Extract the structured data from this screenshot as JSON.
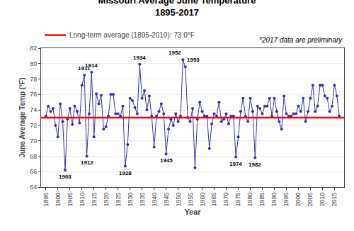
{
  "chart_data": {
    "type": "line",
    "title": "Missouri Average June Temperature",
    "subtitle": "1895-2017",
    "xlabel": "Year",
    "ylabel": "June Average Temp (°F)",
    "note": "*2017 data are preliminary",
    "x": [
      1895,
      1896,
      1897,
      1898,
      1899,
      1900,
      1901,
      1902,
      1903,
      1904,
      1905,
      1906,
      1907,
      1908,
      1909,
      1910,
      1911,
      1912,
      1913,
      1914,
      1915,
      1916,
      1917,
      1918,
      1919,
      1920,
      1921,
      1922,
      1923,
      1924,
      1925,
      1926,
      1927,
      1928,
      1929,
      1930,
      1931,
      1932,
      1933,
      1934,
      1935,
      1936,
      1937,
      1938,
      1939,
      1940,
      1941,
      1942,
      1943,
      1944,
      1945,
      1946,
      1947,
      1948,
      1949,
      1950,
      1951,
      1952,
      1953,
      1954,
      1955,
      1956,
      1957,
      1958,
      1959,
      1960,
      1961,
      1962,
      1963,
      1964,
      1965,
      1966,
      1967,
      1968,
      1969,
      1970,
      1971,
      1972,
      1973,
      1974,
      1975,
      1976,
      1977,
      1978,
      1979,
      1980,
      1981,
      1982,
      1983,
      1984,
      1985,
      1986,
      1987,
      1988,
      1989,
      1990,
      1991,
      1992,
      1993,
      1994,
      1995,
      1996,
      1997,
      1998,
      1999,
      2000,
      2001,
      2002,
      2003,
      2004,
      2005,
      2006,
      2007,
      2008,
      2009,
      2010,
      2011,
      2012,
      2013,
      2014,
      2015,
      2016,
      2017
    ],
    "series": [
      {
        "color": "#3333AA",
        "marker": "circle",
        "values": [
          73.2,
          74.5,
          73.8,
          74.2,
          72.0,
          70.5,
          74.8,
          72.5,
          66.2,
          72.8,
          74.2,
          72.1,
          74.5,
          73.8,
          72.3,
          77.2,
          78.5,
          68.0,
          73.5,
          78.9,
          70.5,
          76.1,
          74.8,
          75.9,
          71.5,
          71.8,
          73.2,
          76.0,
          76.0,
          73.5,
          73.5,
          73.2,
          74.5,
          66.7,
          69.5,
          75.5,
          75.2,
          74.3,
          73.5,
          79.9,
          75.5,
          76.5,
          74.0,
          75.8,
          73.2,
          69.2,
          73.2,
          73.8,
          74.8,
          73.5,
          68.3,
          71.5,
          72.8,
          72.0,
          73.5,
          72.5,
          73.2,
          80.5,
          79.6,
          73.0,
          72.5,
          74.2,
          66.5,
          72.8,
          75.0,
          73.8,
          73.2,
          73.2,
          69.0,
          72.2,
          73.5,
          73.2,
          75.0,
          72.5,
          72.8,
          73.5,
          72.2,
          73.2,
          73.2,
          67.9,
          70.5,
          73.8,
          75.5,
          73.2,
          72.5,
          75.5,
          73.8,
          67.8,
          74.5,
          74.2,
          73.5,
          74.5,
          74.5,
          75.5,
          73.2,
          75.5,
          73.8,
          72.5,
          71.5,
          75.8,
          73.5,
          73.2,
          73.2,
          73.5,
          73.5,
          74.5,
          73.8,
          75.5,
          72.5,
          73.8,
          75.5,
          77.2,
          73.8,
          74.5,
          77.2,
          77.2,
          75.8,
          75.5,
          73.8,
          74.5,
          77.2,
          75.8,
          73.2
        ]
      }
    ],
    "hlines": [
      {
        "name": "Long-term average (1895-2010): 73.0°F",
        "value": 73.0,
        "color": "#FF0000"
      }
    ],
    "annotations": [
      {
        "text": "1903",
        "x": 1903,
        "y": 66.2
      },
      {
        "text": "1911",
        "x": 1911,
        "y": 78.5
      },
      {
        "text": "1914",
        "x": 1914,
        "y": 78.9
      },
      {
        "text": "1912",
        "x": 1912,
        "y": 68.0
      },
      {
        "text": "1928",
        "x": 1928,
        "y": 66.7
      },
      {
        "text": "1934",
        "x": 1934,
        "y": 79.9
      },
      {
        "text": "1945",
        "x": 1945,
        "y": 68.3
      },
      {
        "text": "1952",
        "x": 1952,
        "y": 80.5
      },
      {
        "text": "1953",
        "x": 1953,
        "y": 79.6
      },
      {
        "text": "1974",
        "x": 1974,
        "y": 67.9
      },
      {
        "text": "1982",
        "x": 1982,
        "y": 67.8
      }
    ],
    "xlim": [
      1893,
      2019
    ],
    "xticks": [
      1895,
      1900,
      1905,
      1910,
      1915,
      1920,
      1925,
      1930,
      1935,
      1940,
      1945,
      1950,
      1955,
      1960,
      1965,
      1970,
      1975,
      1980,
      1985,
      1990,
      1995,
      2000,
      2005,
      2010,
      2015
    ],
    "ylim": [
      64,
      82
    ],
    "yticks": [
      64,
      66,
      68,
      70,
      72,
      74,
      76,
      78,
      80,
      82
    ],
    "grid": "y",
    "legend": "top"
  }
}
